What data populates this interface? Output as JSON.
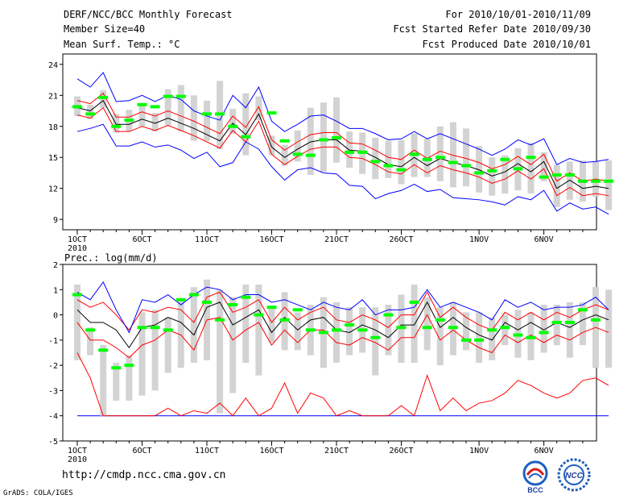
{
  "header": {
    "title": "DERF/NCC/BCC Monthly Forecast",
    "member_size": "Member Size=40",
    "variable": "Mean Surf. Temp.: °C",
    "period": "For 2010/10/01-2010/11/09",
    "started": "Fcst Started Refer Date 2010/09/30",
    "produced": "Fcst Produced Date 2010/10/01"
  },
  "footer": {
    "url": "http://cmdp.ncc.cma.gov.cn",
    "credit": "GrADS: COLA/IGES",
    "logo_bcc": "BCC",
    "logo_ncc": "NCC"
  },
  "colors": {
    "box": "#d3d3d3",
    "ensemble": "#00ff00",
    "mean": "#000000",
    "spread": "#ff0000",
    "extreme": "#0000ff",
    "baseline": "#0000ff"
  },
  "chart_data": [
    {
      "type": "line",
      "title": "Mean Surf. Temp.: °C",
      "x_labels": [
        "1OCT",
        "6OCT",
        "11OCT",
        "16OCT",
        "21OCT",
        "26OCT",
        "1NOV",
        "6NOV"
      ],
      "x_label_days": [
        1,
        6,
        11,
        16,
        21,
        26,
        32,
        37
      ],
      "x_year": "2010",
      "ylim": [
        8,
        25
      ],
      "yticks": [
        9,
        12,
        15,
        18,
        21,
        24
      ],
      "days": 40,
      "series": [
        {
          "name": "ensemble mean",
          "values": [
            19.8,
            19.5,
            20.5,
            18.2,
            18.2,
            18.7,
            18.3,
            18.8,
            18.3,
            17.8,
            17.2,
            16.6,
            18.3,
            17.2,
            19.2,
            16.0,
            15.0,
            15.8,
            16.5,
            16.7,
            16.7,
            15.7,
            15.6,
            15.0,
            14.3,
            14.1,
            15.0,
            14.2,
            14.9,
            14.5,
            14.2,
            13.8,
            13.2,
            13.6,
            14.4,
            13.6,
            14.6,
            12.0,
            12.8,
            12.0,
            12.2,
            12.0
          ]
        },
        {
          "name": "mean + sd",
          "values": [
            20.5,
            20.2,
            21.2,
            18.9,
            18.9,
            19.4,
            19.0,
            19.5,
            19.0,
            18.5,
            17.9,
            17.3,
            19.0,
            17.9,
            19.9,
            16.7,
            15.7,
            16.5,
            17.2,
            17.4,
            17.4,
            16.4,
            16.3,
            15.7,
            15.0,
            14.8,
            15.7,
            14.9,
            15.6,
            15.2,
            14.9,
            14.5,
            13.9,
            14.3,
            15.1,
            14.3,
            15.3,
            12.7,
            13.5,
            12.7,
            12.9,
            12.7
          ]
        },
        {
          "name": "mean - sd",
          "values": [
            19.1,
            18.8,
            19.8,
            17.5,
            17.5,
            18.0,
            17.6,
            18.1,
            17.6,
            17.1,
            16.5,
            15.9,
            17.6,
            16.5,
            18.5,
            15.3,
            14.3,
            15.1,
            15.8,
            16.0,
            16.0,
            15.0,
            14.9,
            14.3,
            13.6,
            13.4,
            14.3,
            13.5,
            14.2,
            13.8,
            13.5,
            13.1,
            12.5,
            12.9,
            13.7,
            12.9,
            13.9,
            11.3,
            12.1,
            11.3,
            11.5,
            11.3
          ]
        },
        {
          "name": "maximum",
          "values": [
            22.6,
            21.8,
            23.2,
            20.4,
            20.5,
            21.0,
            20.4,
            21.0,
            20.6,
            19.5,
            19.0,
            18.6,
            21.0,
            19.8,
            21.8,
            18.5,
            17.5,
            18.2,
            19.0,
            19.1,
            18.5,
            17.8,
            17.8,
            17.3,
            16.7,
            16.8,
            17.5,
            16.8,
            17.3,
            16.8,
            16.3,
            15.8,
            15.2,
            15.8,
            16.7,
            16.2,
            16.8,
            14.3,
            14.9,
            14.5,
            14.6,
            14.8
          ]
        },
        {
          "name": "minimum",
          "values": [
            17.5,
            17.8,
            18.2,
            16.1,
            16.1,
            16.5,
            16.0,
            16.2,
            15.7,
            14.9,
            15.5,
            14.1,
            14.5,
            16.5,
            15.8,
            14.1,
            12.8,
            13.8,
            14.0,
            13.5,
            13.4,
            12.3,
            12.2,
            11.0,
            11.5,
            11.8,
            12.4,
            11.7,
            11.9,
            11.1,
            11.0,
            10.9,
            10.7,
            10.4,
            11.2,
            10.9,
            11.8,
            9.8,
            10.6,
            10.0,
            10.2,
            9.5
          ]
        },
        {
          "name": "member",
          "values": [
            19.9,
            19.2,
            20.8,
            18.0,
            18.6,
            20.1,
            19.9,
            20.9,
            20.9,
            null,
            19.2,
            19.2,
            18.0,
            17.0,
            null,
            19.3,
            16.6,
            15.3,
            15.2,
            16.7,
            16.9,
            15.5,
            15.5,
            14.6,
            14.2,
            13.8,
            15.3,
            14.8,
            15.0,
            14.5,
            14.2,
            13.5,
            13.7,
            14.8,
            13.9,
            15.0,
            13.1,
            13.3,
            13.3,
            12.7,
            12.7,
            12.7
          ]
        }
      ],
      "box_low": [
        19.0,
        18.7,
        19.8,
        17.4,
        17.5,
        18.0,
        17.5,
        18.1,
        17.5,
        16.6,
        16.6,
        15.8,
        17.3,
        15.2,
        18.6,
        15.2,
        14.2,
        14.6,
        13.3,
        13.6,
        14.5,
        14.0,
        13.4,
        12.9,
        13.0,
        12.4,
        13.1,
        13.1,
        12.7,
        12.1,
        12.2,
        11.6,
        11.3,
        11.5,
        11.8,
        11.5,
        12.7,
        10.2,
        10.9,
        10.7,
        11.2,
        9.9
      ],
      "box_high": [
        20.9,
        20.1,
        21.5,
        19.2,
        19.6,
        20.2,
        19.3,
        21.6,
        22.0,
        21.0,
        20.5,
        22.4,
        19.7,
        21.2,
        20.9,
        17.1,
        16.2,
        17.6,
        19.8,
        20.3,
        20.8,
        17.5,
        17.4,
        16.9,
        16.6,
        16.7,
        17.3,
        16.8,
        18.0,
        18.4,
        17.8,
        16.1,
        15.0,
        15.2,
        15.9,
        16.4,
        15.5,
        14.3,
        14.6,
        14.7,
        14.6,
        14.7
      ]
    },
    {
      "type": "line",
      "title": "Prec.: log(mm/d)",
      "x_labels": [
        "1OCT",
        "6OCT",
        "11OCT",
        "16OCT",
        "21OCT",
        "26OCT",
        "1NOV",
        "6NOV"
      ],
      "x_label_days": [
        1,
        6,
        11,
        16,
        21,
        26,
        32,
        37
      ],
      "x_year": "2010",
      "ylim": [
        -5,
        2
      ],
      "yticks": [
        -5,
        -4,
        -3,
        -2,
        -1,
        0,
        1,
        2
      ],
      "days": 40,
      "series": [
        {
          "name": "ensemble mean",
          "values": [
            0.2,
            -0.3,
            -0.3,
            -0.6,
            -1.3,
            -0.5,
            -0.4,
            -0.1,
            -0.3,
            -0.8,
            0.3,
            0.5,
            -0.4,
            -0.1,
            0.2,
            -0.7,
            -0.1,
            -0.6,
            -0.2,
            -0.1,
            -0.6,
            -0.7,
            -0.4,
            -0.6,
            -0.9,
            -0.4,
            -0.4,
            0.5,
            -0.5,
            -0.1,
            -0.5,
            -0.8,
            -1.0,
            -0.3,
            -0.6,
            -0.3,
            -0.6,
            -0.3,
            -0.5,
            -0.2,
            0.0,
            -0.2
          ]
        },
        {
          "name": "mean + sd",
          "values": [
            0.6,
            0.3,
            0.5,
            0.0,
            -0.6,
            0.2,
            0.1,
            0.3,
            0.2,
            -0.3,
            0.7,
            0.9,
            0.1,
            0.3,
            0.6,
            -0.3,
            0.3,
            -0.2,
            0.1,
            0.3,
            -0.2,
            -0.3,
            0.0,
            -0.2,
            -0.5,
            0.0,
            0.0,
            0.9,
            -0.1,
            0.3,
            -0.1,
            -0.4,
            -0.6,
            0.1,
            -0.2,
            0.1,
            -0.2,
            0.1,
            -0.1,
            0.2,
            0.4,
            0.2
          ]
        },
        {
          "name": "mean - sd",
          "values": [
            -0.3,
            -1.0,
            -1.0,
            -1.3,
            -1.7,
            -1.2,
            -1.0,
            -0.6,
            -0.8,
            -1.4,
            -0.2,
            -0.1,
            -1.0,
            -0.6,
            -0.3,
            -1.2,
            -0.6,
            -1.1,
            -0.6,
            -0.6,
            -1.1,
            -1.2,
            -0.9,
            -1.1,
            -1.4,
            -0.9,
            -0.9,
            0.0,
            -1.0,
            -0.6,
            -1.0,
            -1.3,
            -1.5,
            -0.8,
            -1.1,
            -0.8,
            -1.1,
            -0.8,
            -1.0,
            -0.7,
            -0.5,
            -0.7
          ]
        },
        {
          "name": "maximum",
          "values": [
            0.9,
            0.6,
            1.3,
            0.2,
            -0.7,
            0.6,
            0.5,
            0.8,
            0.4,
            0.8,
            1.1,
            1.0,
            0.6,
            0.8,
            0.8,
            0.5,
            0.6,
            0.4,
            0.2,
            0.5,
            0.3,
            0.2,
            0.6,
            0.0,
            0.2,
            0.2,
            0.3,
            1.0,
            0.3,
            0.5,
            0.3,
            0.1,
            -0.2,
            0.6,
            0.3,
            0.5,
            0.2,
            0.3,
            0.3,
            0.4,
            0.7,
            0.2
          ]
        },
        {
          "name": "minimum",
          "values": [
            -1.5,
            -2.5,
            -4.0,
            -4.0,
            -4.0,
            -4.0,
            -4.0,
            -3.7,
            -4.0,
            -3.8,
            -3.9,
            -3.5,
            -4.0,
            -3.3,
            -4.0,
            -3.7,
            -2.7,
            -3.9,
            -3.1,
            -3.3,
            -4.0,
            -3.8,
            -4.0,
            -4.0,
            -4.0,
            -3.6,
            -4.0,
            -2.4,
            -3.8,
            -3.3,
            -3.8,
            -3.5,
            -3.4,
            -3.1,
            -2.6,
            -2.8,
            -3.1,
            -3.3,
            -3.1,
            -2.6,
            -2.5,
            -2.8
          ]
        },
        {
          "name": "member",
          "values": [
            0.8,
            -0.6,
            -1.4,
            -2.1,
            -2.0,
            -0.5,
            -0.5,
            -0.6,
            0.6,
            0.8,
            0.5,
            -0.2,
            0.4,
            0.7,
            0.0,
            0.3,
            -0.2,
            0.2,
            -0.6,
            -0.7,
            -0.6,
            -0.4,
            -0.6,
            -0.9,
            0.0,
            -0.5,
            0.5,
            -0.5,
            -0.2,
            -0.5,
            -1.0,
            -1.0,
            -0.6,
            -0.5,
            -0.8,
            -0.9,
            -0.7,
            -0.3,
            -0.3,
            0.2,
            -0.2,
            null
          ]
        }
      ],
      "box_low": [
        -1.8,
        -1.6,
        -4.0,
        -3.4,
        -3.4,
        -3.2,
        -3.0,
        -2.3,
        -2.1,
        -1.9,
        -1.8,
        -3.9,
        -3.1,
        -1.9,
        -2.4,
        -1.1,
        -1.4,
        -1.4,
        -1.6,
        -2.1,
        -1.9,
        -1.6,
        -1.5,
        -2.4,
        -1.6,
        -1.9,
        -1.9,
        -1.4,
        -2.0,
        -1.6,
        -1.4,
        -1.9,
        -1.8,
        -1.2,
        -1.7,
        -1.8,
        -1.5,
        -1.2,
        -1.7,
        -1.2,
        -2.1,
        -2.1
      ],
      "box_high": [
        1.2,
        -0.5,
        -1.2,
        -1.9,
        -1.6,
        0.1,
        0.2,
        -0.1,
        0.6,
        1.1,
        1.4,
        1.0,
        0.7,
        1.2,
        1.2,
        0.3,
        0.9,
        0.1,
        0.4,
        0.7,
        0.5,
        0.3,
        0.3,
        0.3,
        0.4,
        0.8,
        1.2,
        0.7,
        0.3,
        0.5,
        0.1,
        0.1,
        -0.1,
        0.0,
        0.2,
        0.1,
        0.4,
        0.4,
        0.5,
        0.5,
        1.1,
        1.0
      ]
    }
  ]
}
